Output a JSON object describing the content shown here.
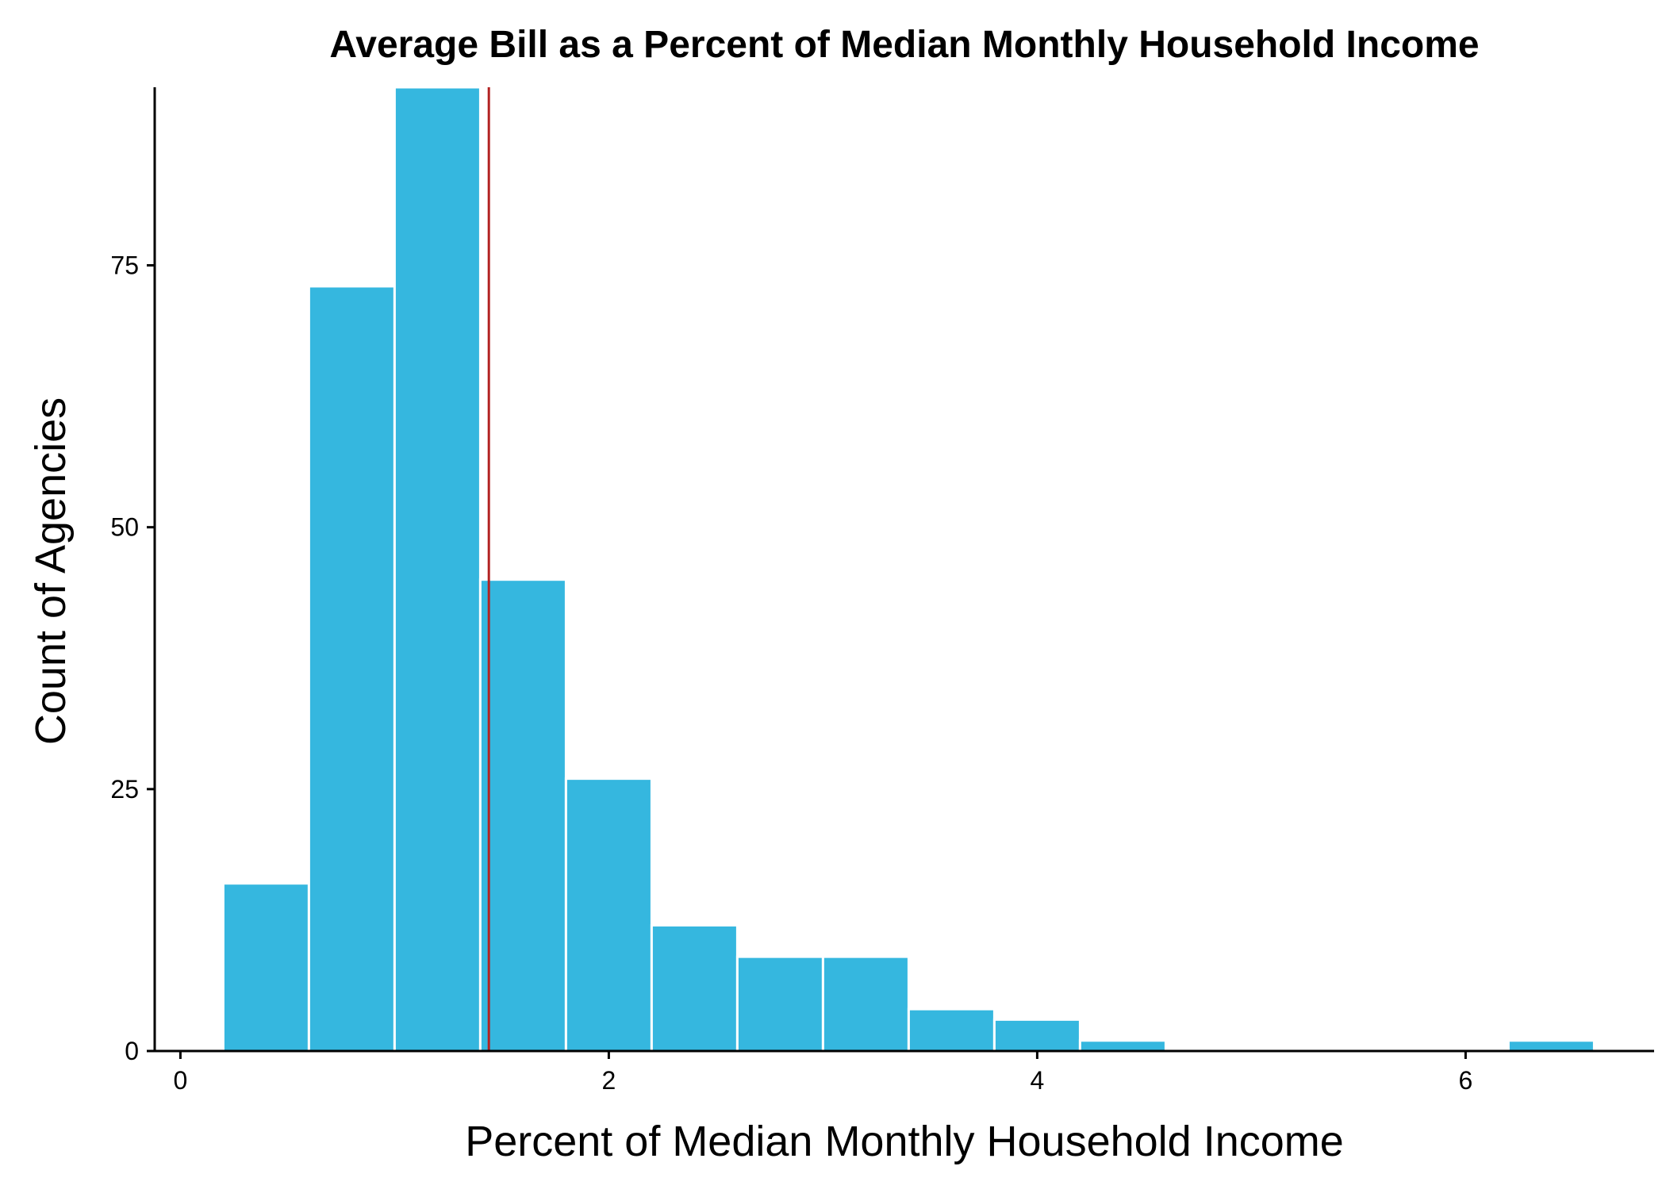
{
  "chart_data": {
    "type": "histogram",
    "title": "Average Bill as a Percent of Median Monthly Household Income",
    "xlabel": "Percent of Median Monthly Household Income",
    "ylabel": "Count of Agencies",
    "xlim": [
      -0.12,
      6.88
    ],
    "ylim": [
      0,
      92
    ],
    "x_ticks": [
      0,
      2,
      4,
      6
    ],
    "y_ticks": [
      0,
      25,
      50,
      75
    ],
    "bin_width": 0.4,
    "bins": [
      {
        "x0": 0.2,
        "x1": 0.6,
        "count": 16
      },
      {
        "x0": 0.6,
        "x1": 1.0,
        "count": 73
      },
      {
        "x0": 1.0,
        "x1": 1.4,
        "count": 92
      },
      {
        "x0": 1.4,
        "x1": 1.8,
        "count": 45
      },
      {
        "x0": 1.8,
        "x1": 2.2,
        "count": 26
      },
      {
        "x0": 2.2,
        "x1": 2.6,
        "count": 12
      },
      {
        "x0": 2.6,
        "x1": 3.0,
        "count": 9
      },
      {
        "x0": 3.0,
        "x1": 3.4,
        "count": 9
      },
      {
        "x0": 3.4,
        "x1": 3.8,
        "count": 4
      },
      {
        "x0": 3.8,
        "x1": 4.2,
        "count": 3
      },
      {
        "x0": 4.2,
        "x1": 4.6,
        "count": 1
      },
      {
        "x0": 6.2,
        "x1": 6.6,
        "count": 1
      }
    ],
    "reference_line": {
      "x": 1.44,
      "color": "#b22222"
    },
    "bar_color": "#35b7df",
    "bar_edge_color": "#ffffff",
    "grid": false,
    "legend": "none"
  }
}
